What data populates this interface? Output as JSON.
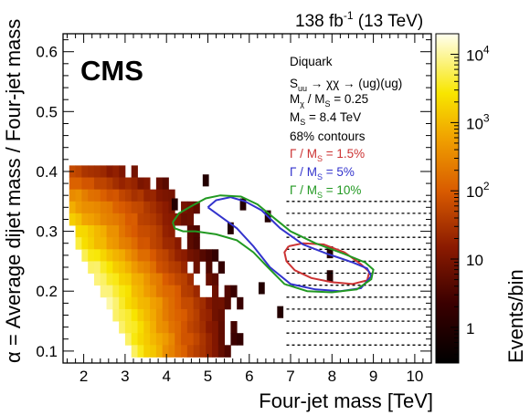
{
  "header": {
    "lumi_value": "138 fb",
    "lumi_exp": "-1",
    "lumi_energy": " (13 TeV)",
    "experiment": "CMS"
  },
  "legend": {
    "line1": "Diquark",
    "line2_S": "S",
    "line2_sub": "uu",
    "line2_rest": " → χχ → (ug)(ug)",
    "line3_M": "M",
    "line3_sub1": "χ",
    "line3_mid": " / M",
    "line3_sub2": "S",
    "line3_val": " = 0.25",
    "line4_M": "M",
    "line4_sub": "S",
    "line4_val": " = 8.4 TeV",
    "line5": "68% contours",
    "contours": [
      {
        "name_pre": "Γ / M",
        "name_sub": "S",
        "name_post": " = 1.5%",
        "color": "#cc3333",
        "fraction": 1.5
      },
      {
        "name_pre": "Γ / M",
        "name_sub": "S",
        "name_post": " = 5%",
        "color": "#3333cc",
        "fraction": 5
      },
      {
        "name_pre": "Γ / M",
        "name_sub": "S",
        "name_post": " = 10%",
        "color": "#229922",
        "fraction": 10
      }
    ]
  },
  "chart_data": {
    "type": "heatmap",
    "xlabel": "Four-jet mass [TeV]",
    "ylabel": "α = Average dijet mass / Four-jet mass",
    "zlabel": "Events/bin",
    "xlim": [
      1.5,
      10.4
    ],
    "ylim": [
      0.08,
      0.63
    ],
    "x_ticks": [
      2,
      3,
      4,
      5,
      6,
      7,
      8,
      9,
      10
    ],
    "y_ticks": [
      0.1,
      0.2,
      0.3,
      0.4,
      0.5,
      0.6
    ],
    "zlim": [
      0.3,
      20000
    ],
    "z_log": true,
    "z_ticks": [
      {
        "value": 1,
        "base": "1",
        "exp": ""
      },
      {
        "value": 10,
        "base": "10",
        "exp": ""
      },
      {
        "value": 100,
        "base": "10",
        "exp": "2"
      },
      {
        "value": 1000,
        "base": "10",
        "exp": "3"
      },
      {
        "value": 10000,
        "base": "10",
        "exp": "4"
      }
    ],
    "y_bin_edges": [
      0.09,
      0.11,
      0.13,
      0.15,
      0.17,
      0.19,
      0.21,
      0.23,
      0.25,
      0.27,
      0.29,
      0.31,
      0.33,
      0.35,
      0.37,
      0.39,
      0.41
    ],
    "x_bin_width": 0.15,
    "x_start": 1.65,
    "rows": [
      {
        "y0": 0.39,
        "y1": 0.41,
        "x0": 1.65,
        "n": 11,
        "peak": 60,
        "decay": 0.25
      },
      {
        "y0": 0.37,
        "y1": 0.39,
        "x0": 1.65,
        "n": 16,
        "peak": 150,
        "decay": 0.28
      },
      {
        "y0": 0.35,
        "y1": 0.37,
        "x0": 1.65,
        "n": 19,
        "peak": 400,
        "decay": 0.3
      },
      {
        "y0": 0.33,
        "y1": 0.35,
        "x0": 1.65,
        "n": 21,
        "peak": 800,
        "decay": 0.32
      },
      {
        "y0": 0.31,
        "y1": 0.33,
        "x0": 1.65,
        "n": 22,
        "peak": 1500,
        "decay": 0.36
      },
      {
        "y0": 0.29,
        "y1": 0.31,
        "x0": 1.8,
        "n": 21,
        "peak": 2500,
        "decay": 0.42
      },
      {
        "y0": 0.27,
        "y1": 0.29,
        "x0": 1.8,
        "n": 22,
        "peak": 4000,
        "decay": 0.45
      },
      {
        "y0": 0.25,
        "y1": 0.27,
        "x0": 1.95,
        "n": 22,
        "peak": 6000,
        "decay": 0.48
      },
      {
        "y0": 0.23,
        "y1": 0.25,
        "x0": 2.1,
        "n": 22,
        "peak": 8000,
        "decay": 0.5
      },
      {
        "y0": 0.21,
        "y1": 0.23,
        "x0": 2.25,
        "n": 22,
        "peak": 10000,
        "decay": 0.5
      },
      {
        "y0": 0.19,
        "y1": 0.21,
        "x0": 2.4,
        "n": 22,
        "peak": 10000,
        "decay": 0.5
      },
      {
        "y0": 0.17,
        "y1": 0.19,
        "x0": 2.55,
        "n": 22,
        "peak": 9000,
        "decay": 0.5
      },
      {
        "y0": 0.15,
        "y1": 0.17,
        "x0": 2.7,
        "n": 21,
        "peak": 8000,
        "decay": 0.52
      },
      {
        "y0": 0.13,
        "y1": 0.15,
        "x0": 2.85,
        "n": 20,
        "peak": 7000,
        "decay": 0.54
      },
      {
        "y0": 0.11,
        "y1": 0.13,
        "x0": 3.0,
        "n": 20,
        "peak": 6000,
        "decay": 0.56
      },
      {
        "y0": 0.09,
        "y1": 0.11,
        "x0": 3.15,
        "n": 19,
        "peak": 5000,
        "decay": 0.58
      }
    ],
    "isolated_bins": [
      {
        "x": 4.2,
        "y": 0.345,
        "z": 1
      },
      {
        "x": 4.95,
        "y": 0.385,
        "z": 1
      },
      {
        "x": 5.85,
        "y": 0.345,
        "z": 1
      },
      {
        "x": 6.45,
        "y": 0.325,
        "z": 1
      },
      {
        "x": 5.55,
        "y": 0.305,
        "z": 1
      },
      {
        "x": 7.95,
        "y": 0.265,
        "z": 1
      },
      {
        "x": 7.95,
        "y": 0.225,
        "z": 1
      },
      {
        "x": 6.75,
        "y": 0.165,
        "z": 1
      },
      {
        "x": 6.3,
        "y": 0.205,
        "z": 1
      }
    ],
    "dashed_lines_y": [
      0.11,
      0.13,
      0.15,
      0.17,
      0.19,
      0.21,
      0.23,
      0.25,
      0.27,
      0.29,
      0.31,
      0.33,
      0.35
    ],
    "dashed_line_x_start": 6.9,
    "contours": [
      {
        "name": "Γ / M_S = 1.5%",
        "color": "#cc3333",
        "points": [
          [
            6.95,
            0.275
          ],
          [
            7.3,
            0.28
          ],
          [
            7.8,
            0.278
          ],
          [
            8.3,
            0.265
          ],
          [
            8.7,
            0.245
          ],
          [
            8.9,
            0.232
          ],
          [
            8.85,
            0.218
          ],
          [
            8.5,
            0.212
          ],
          [
            8.0,
            0.215
          ],
          [
            7.5,
            0.222
          ],
          [
            7.1,
            0.235
          ],
          [
            6.9,
            0.25
          ],
          [
            6.85,
            0.265
          ],
          [
            6.95,
            0.275
          ]
        ]
      },
      {
        "name": "Γ / M_S = 5%",
        "color": "#3333cc",
        "points": [
          [
            5.0,
            0.34
          ],
          [
            5.2,
            0.352
          ],
          [
            5.55,
            0.357
          ],
          [
            5.9,
            0.35
          ],
          [
            6.3,
            0.335
          ],
          [
            6.75,
            0.305
          ],
          [
            7.3,
            0.278
          ],
          [
            7.9,
            0.262
          ],
          [
            8.5,
            0.248
          ],
          [
            8.85,
            0.238
          ],
          [
            8.95,
            0.225
          ],
          [
            8.7,
            0.205
          ],
          [
            8.2,
            0.2
          ],
          [
            7.6,
            0.203
          ],
          [
            7.0,
            0.212
          ],
          [
            6.5,
            0.24
          ],
          [
            6.1,
            0.275
          ],
          [
            5.7,
            0.305
          ],
          [
            5.3,
            0.325
          ],
          [
            5.0,
            0.34
          ]
        ]
      },
      {
        "name": "Γ / M_S = 10%",
        "color": "#229922",
        "points": [
          [
            4.15,
            0.315
          ],
          [
            4.3,
            0.33
          ],
          [
            4.6,
            0.342
          ],
          [
            4.95,
            0.355
          ],
          [
            5.3,
            0.36
          ],
          [
            5.8,
            0.358
          ],
          [
            6.2,
            0.345
          ],
          [
            6.55,
            0.325
          ],
          [
            7.0,
            0.3
          ],
          [
            7.6,
            0.28
          ],
          [
            8.3,
            0.262
          ],
          [
            8.8,
            0.248
          ],
          [
            9.0,
            0.236
          ],
          [
            8.95,
            0.22
          ],
          [
            8.6,
            0.203
          ],
          [
            8.0,
            0.198
          ],
          [
            7.4,
            0.2
          ],
          [
            6.85,
            0.212
          ],
          [
            6.45,
            0.24
          ],
          [
            6.1,
            0.265
          ],
          [
            5.7,
            0.285
          ],
          [
            5.2,
            0.295
          ],
          [
            4.7,
            0.3
          ],
          [
            4.4,
            0.3
          ],
          [
            4.2,
            0.305
          ],
          [
            4.15,
            0.315
          ]
        ]
      }
    ]
  }
}
